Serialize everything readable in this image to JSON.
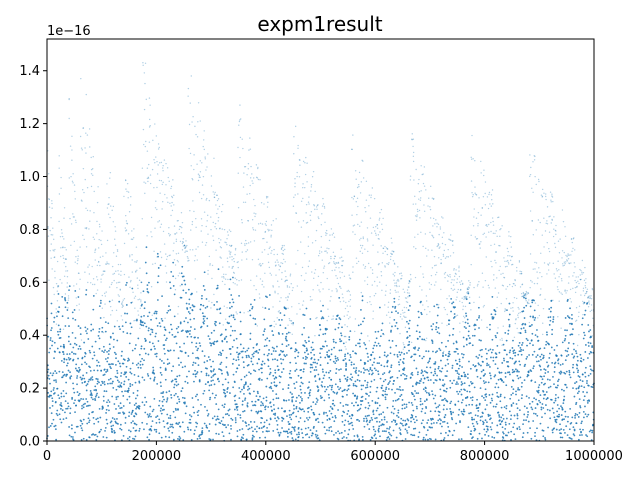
{
  "chart_data": {
    "type": "scatter",
    "title": "expm1result",
    "xlabel": "",
    "ylabel": "",
    "y_offset_label": "1e−16",
    "xlim": [
      0,
      1000000
    ],
    "ylim": [
      0,
      1.52
    ],
    "y_scale_note": "y values shown in units of 1e-16",
    "grid": false,
    "legend": "none",
    "x_ticks": [
      0,
      200000,
      400000,
      600000,
      800000,
      1000000
    ],
    "x_tick_labels": [
      "0",
      "200000",
      "400000",
      "600000",
      "800000",
      "1000000"
    ],
    "y_ticks": [
      0.0,
      0.2,
      0.4,
      0.6,
      0.8,
      1.0,
      1.2,
      1.4
    ],
    "y_tick_labels": [
      "0.0",
      "0.2",
      "0.4",
      "0.6",
      "0.8",
      "1.0",
      "1.2",
      "1.4"
    ],
    "series": [
      {
        "color": "#1f77b4",
        "segments": [
          {
            "x_start": 0,
            "x_end": 22000,
            "peak": 1.1,
            "dense_top": 0.6
          },
          {
            "x_start": 22000,
            "x_end": 40000,
            "peak": 1.15,
            "dense_top": 0.58
          },
          {
            "x_start": 40000,
            "x_end": 60000,
            "peak": 1.3,
            "dense_top": 0.6
          },
          {
            "x_start": 60000,
            "x_end": 108000,
            "peak": 1.43,
            "dense_top": 0.58
          },
          {
            "x_start": 108000,
            "x_end": 140000,
            "peak": 1.11,
            "dense_top": 0.55
          },
          {
            "x_start": 140000,
            "x_end": 174000,
            "peak": 1.1,
            "dense_top": 0.6
          },
          {
            "x_start": 174000,
            "x_end": 258000,
            "peak": 1.47,
            "dense_top": 0.74
          },
          {
            "x_start": 258000,
            "x_end": 348000,
            "peak": 1.41,
            "dense_top": 0.66
          },
          {
            "x_start": 348000,
            "x_end": 450000,
            "peak": 1.25,
            "dense_top": 0.58
          },
          {
            "x_start": 450000,
            "x_end": 556000,
            "peak": 1.19,
            "dense_top": 0.56
          },
          {
            "x_start": 556000,
            "x_end": 664000,
            "peak": 1.14,
            "dense_top": 0.56
          },
          {
            "x_start": 664000,
            "x_end": 774000,
            "peak": 1.14,
            "dense_top": 0.56
          },
          {
            "x_start": 774000,
            "x_end": 882000,
            "peak": 1.14,
            "dense_top": 0.55
          },
          {
            "x_start": 882000,
            "x_end": 1000000,
            "peak": 1.12,
            "dense_top": 0.55
          }
        ]
      }
    ]
  }
}
